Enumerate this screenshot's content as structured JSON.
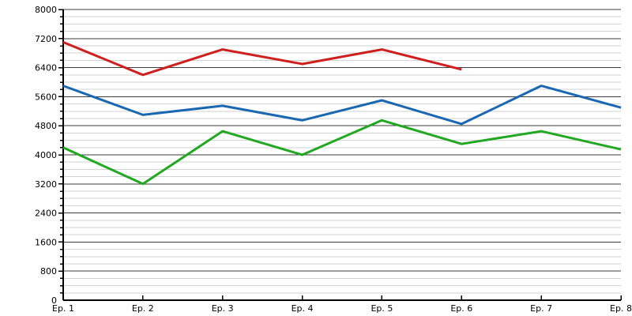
{
  "chart_data": {
    "type": "line",
    "title": "",
    "xlabel": "",
    "ylabel": "",
    "categories": [
      "Ep. 1",
      "Ep. 2",
      "Ep. 3",
      "Ep. 4",
      "Ep. 5",
      "Ep. 6",
      "Ep. 7",
      "Ep. 8"
    ],
    "series": [
      {
        "name": "red-series",
        "color": "#cf2020",
        "values": [
          7100,
          6200,
          6900,
          6500,
          6900,
          6350,
          null,
          null
        ]
      },
      {
        "name": "blue-series",
        "color": "#1a68b2",
        "values": [
          5900,
          5100,
          5350,
          4950,
          5500,
          4850,
          5900,
          5300
        ]
      },
      {
        "name": "green-series",
        "color": "#22a822",
        "values": [
          4200,
          3200,
          4650,
          4000,
          4950,
          4300,
          4650,
          4150
        ]
      }
    ],
    "ylim": [
      0,
      8000
    ],
    "y_major_step": 800,
    "y_minor_step": 200,
    "y_tick_labels": [
      "0",
      "800",
      "1600",
      "2400",
      "3200",
      "4000",
      "4800",
      "5600",
      "6400",
      "7200",
      "8000"
    ],
    "grid": "horizontal-only, dark major lines + light minor lines",
    "legend": "none",
    "axis_color": "#000000",
    "major_grid_color": "#3d3d3d",
    "minor_grid_color": "#d2d2d2",
    "label_color": "#000000",
    "background_color": "#ffffff"
  }
}
